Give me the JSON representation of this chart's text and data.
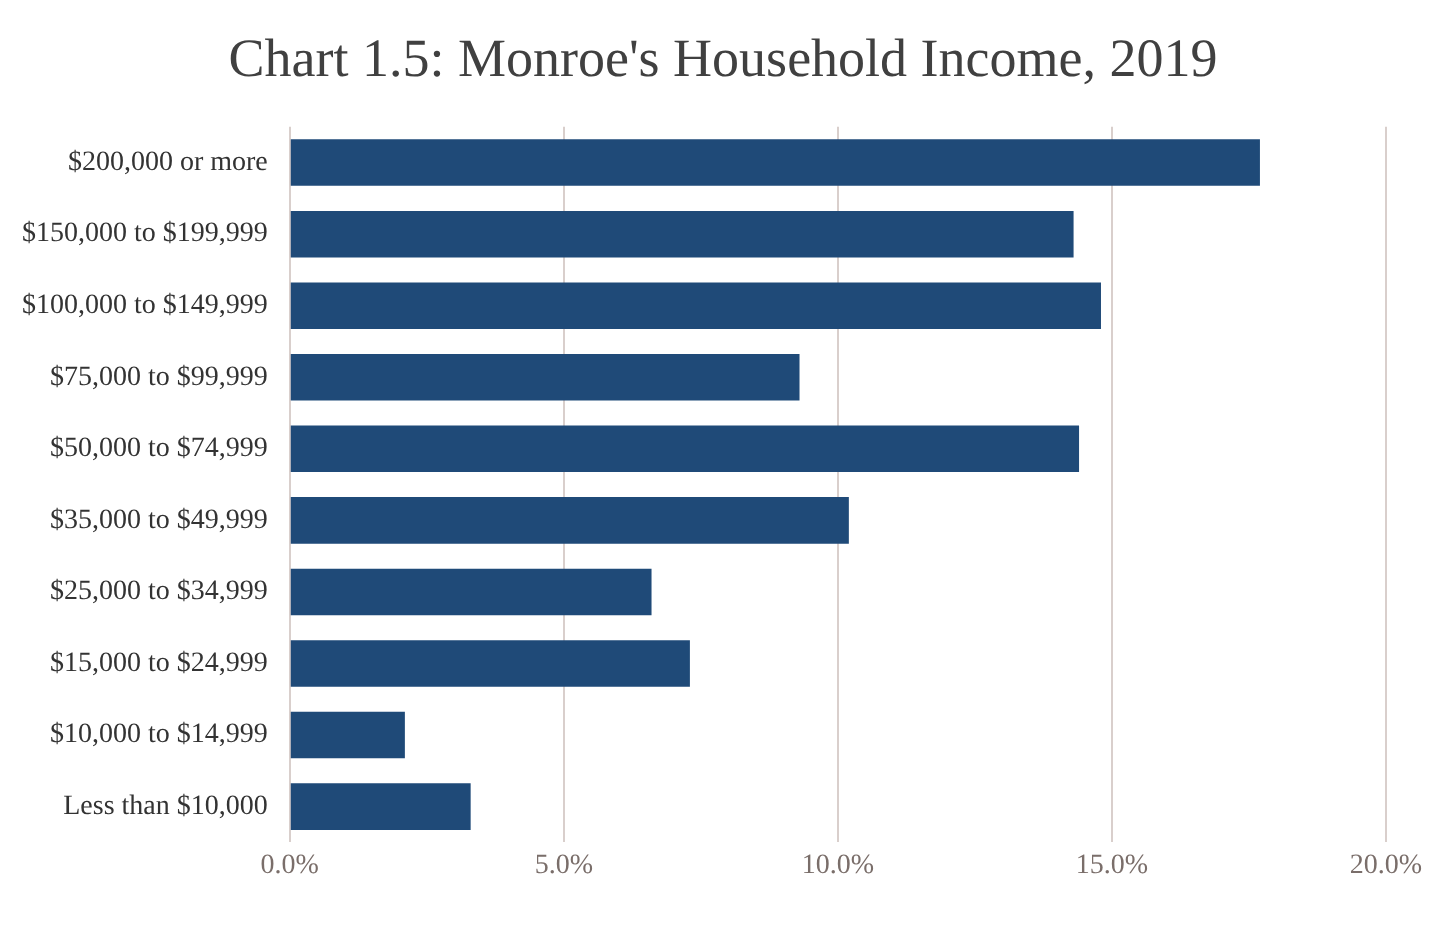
{
  "chart_data": {
    "type": "bar",
    "orientation": "horizontal",
    "title": "Chart 1.5: Monroe's Household Income, 2019",
    "categories": [
      "$200,000 or more",
      "$150,000 to $199,999",
      "$100,000 to $149,999",
      "$75,000 to $99,999",
      "$50,000 to $74,999",
      "$35,000 to $49,999",
      "$25,000 to $34,999",
      "$15,000 to $24,999",
      "$10,000 to $14,999",
      "Less than $10,000"
    ],
    "values": [
      17.7,
      14.3,
      14.8,
      9.3,
      14.4,
      10.2,
      6.6,
      7.3,
      2.1,
      3.3
    ],
    "color": "#1f4a78",
    "xlim": [
      0,
      20
    ],
    "xticks": [
      {
        "value": 0,
        "label": "0.0%"
      },
      {
        "value": 5,
        "label": "5.0%"
      },
      {
        "value": 10,
        "label": "10.0%"
      },
      {
        "value": 15,
        "label": "15.0%"
      },
      {
        "value": 20,
        "label": "20.0%"
      }
    ],
    "grid": "x",
    "legend": false
  }
}
